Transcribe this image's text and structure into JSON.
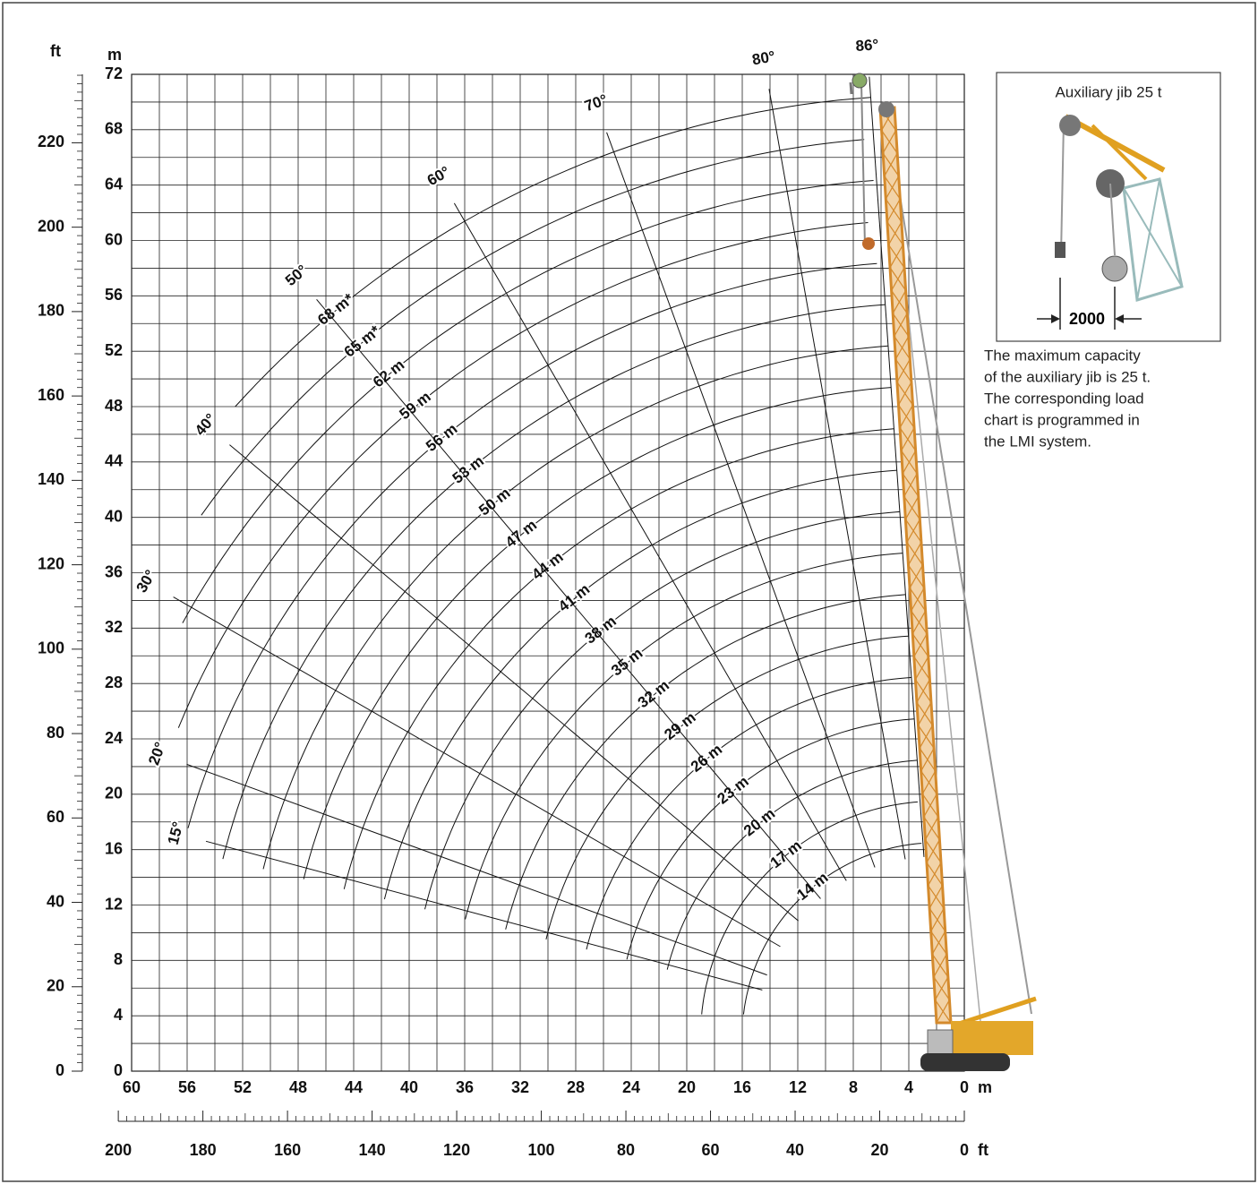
{
  "chart_data": {
    "type": "working-range",
    "x_unit": "m",
    "y_unit": "m",
    "x2_unit": "ft",
    "y2_unit": "ft",
    "xlim": [
      60,
      0
    ],
    "ylim": [
      0,
      72
    ],
    "xticks": [
      60,
      56,
      52,
      48,
      44,
      40,
      36,
      32,
      28,
      24,
      20,
      16,
      12,
      8,
      4,
      0
    ],
    "xminorticks": [
      58,
      54,
      50,
      46,
      42,
      38,
      34,
      30,
      26,
      22,
      18,
      14,
      10,
      6,
      2
    ],
    "yticks": [
      0,
      4,
      8,
      12,
      16,
      20,
      24,
      28,
      32,
      36,
      40,
      44,
      48,
      52,
      56,
      60,
      64,
      68,
      72
    ],
    "yminorticks": [
      2,
      6,
      10,
      14,
      18,
      22,
      26,
      30,
      34,
      38,
      42,
      46,
      50,
      54,
      58,
      62,
      66,
      70
    ],
    "ft_yticks": [
      0,
      20,
      40,
      60,
      80,
      100,
      120,
      140,
      160,
      180,
      200,
      220
    ],
    "ft_xticks": [
      200,
      180,
      160,
      140,
      120,
      100,
      80,
      60,
      40,
      20,
      0
    ],
    "ft_minorticks": [
      2,
      4,
      6,
      8,
      10,
      12,
      14,
      16,
      18,
      22,
      24,
      26,
      28,
      30,
      32,
      34,
      36,
      38,
      42,
      44,
      46,
      48,
      50,
      52,
      54,
      56,
      58,
      62,
      64,
      66,
      68,
      70,
      72,
      74,
      76,
      78,
      82,
      84,
      86,
      88,
      90,
      92,
      94,
      96,
      98,
      102,
      104,
      106,
      108,
      110,
      112,
      114,
      116,
      118,
      122,
      124,
      126,
      128,
      130,
      132,
      134,
      136,
      138,
      142,
      144,
      146,
      148,
      150,
      152,
      154,
      156,
      158,
      162,
      164,
      166,
      168,
      170,
      172,
      174,
      176,
      178,
      182,
      184,
      186,
      188,
      190,
      192,
      194,
      196,
      198,
      202,
      204,
      206,
      208,
      210,
      212,
      214,
      216,
      218,
      222,
      224,
      226,
      228,
      230,
      232,
      234,
      236
    ],
    "boom_lengths": [
      {
        "value": 68,
        "label": "68 m*"
      },
      {
        "value": 65,
        "label": "65 m*"
      },
      {
        "value": 62,
        "label": "62 m"
      },
      {
        "value": 59,
        "label": "59 m"
      },
      {
        "value": 56,
        "label": "56 m"
      },
      {
        "value": 53,
        "label": "53 m"
      },
      {
        "value": 50,
        "label": "50 m"
      },
      {
        "value": 47,
        "label": "47 m"
      },
      {
        "value": 44,
        "label": "44 m"
      },
      {
        "value": 41,
        "label": "41 m"
      },
      {
        "value": 38,
        "label": "38 m"
      },
      {
        "value": 35,
        "label": "35 m"
      },
      {
        "value": 32,
        "label": "32 m"
      },
      {
        "value": 29,
        "label": "29 m"
      },
      {
        "value": 26,
        "label": "26 m"
      },
      {
        "value": 23,
        "label": "23 m"
      },
      {
        "value": 20,
        "label": "20 m"
      },
      {
        "value": 17,
        "label": "17 m"
      },
      {
        "value": 14,
        "label": "14 m"
      }
    ],
    "boom_angles": [
      {
        "value": 15,
        "label": "15°"
      },
      {
        "value": 20,
        "label": "20°"
      },
      {
        "value": 30,
        "label": "30°"
      },
      {
        "value": 40,
        "label": "40°"
      },
      {
        "value": 50,
        "label": "50°"
      },
      {
        "value": 60,
        "label": "60°"
      },
      {
        "value": 70,
        "label": "70°"
      },
      {
        "value": 80,
        "label": "80°"
      },
      {
        "value": 86,
        "label": "86°"
      }
    ]
  },
  "aux_panel": {
    "title": "Auxiliary jib 25 t",
    "dimension": "2000",
    "note": [
      "The maximum capacity",
      "of the auxiliary jib is 25 t.",
      "The corresponding load",
      "chart is programmed in",
      "the LMI system."
    ]
  }
}
